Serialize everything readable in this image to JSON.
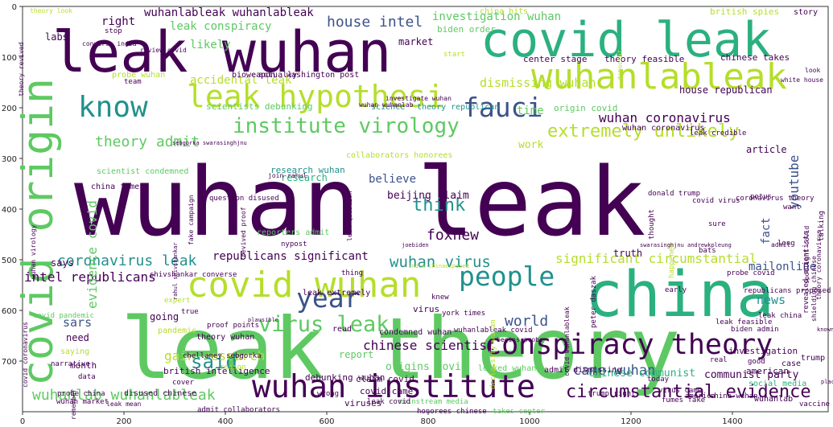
{
  "axes": {
    "x_ticks": [
      "0",
      "200",
      "400",
      "600",
      "800",
      "1000",
      "1200",
      "1400"
    ],
    "y_ticks": [
      "0",
      "100",
      "200",
      "300",
      "400",
      "500",
      "600",
      "700"
    ]
  },
  "colors": {
    "dark_purple": "#440154",
    "blue": "#3b528b",
    "teal": "#21918c",
    "green": "#2bb07f",
    "bright_green": "#5ec962",
    "lime": "#b5de2b",
    "yellow": "#fde725"
  },
  "words": [
    {
      "text": "wuhan leak",
      "color": "#440154"
    },
    {
      "text": "leak theory",
      "color": "#5ec962"
    },
    {
      "text": "china",
      "color": "#2bb07f"
    },
    {
      "text": "leak wuhan",
      "color": "#440154"
    },
    {
      "text": "covid leak",
      "color": "#2bb07f"
    },
    {
      "text": "covid wuhan",
      "color": "#b5de2b"
    },
    {
      "text": "covid origin",
      "color": "#5ec962"
    },
    {
      "text": "wuhanlableak",
      "color": "#b5de2b"
    },
    {
      "text": "leak hypothesi",
      "color": "#b5de2b"
    },
    {
      "text": "conspiracy theory",
      "color": "#440154"
    },
    {
      "text": "wuhan institute",
      "color": "#440154"
    },
    {
      "text": "institute virology",
      "color": "#5ec962"
    },
    {
      "text": "know",
      "color": "#21918c"
    },
    {
      "text": "fauci",
      "color": "#3b528b"
    },
    {
      "text": "people",
      "color": "#21918c"
    },
    {
      "text": "year",
      "color": "#3b528b"
    },
    {
      "text": "virus leak",
      "color": "#5ec962"
    },
    {
      "text": "circumstantial evidence",
      "color": "#440154"
    },
    {
      "text": "extremely unlikely",
      "color": "#b5de2b"
    },
    {
      "text": "wuhan coronavirus",
      "color": "#440154"
    },
    {
      "text": "theory admit",
      "color": "#5ec962"
    },
    {
      "text": "coronavirus leak",
      "color": "#21918c"
    },
    {
      "text": "wuhan virus",
      "color": "#21918c"
    },
    {
      "text": "significant circumstantial",
      "color": "#b5de2b"
    },
    {
      "text": "intel republicans",
      "color": "#440154"
    },
    {
      "text": "foxnew",
      "color": "#440154"
    },
    {
      "text": "think",
      "color": "#21918c"
    },
    {
      "text": "said",
      "color": "#21918c"
    },
    {
      "text": "chinese scientist",
      "color": "#440154"
    },
    {
      "text": "gain research",
      "color": "#b5de2b"
    },
    {
      "text": "came wuhan",
      "color": "#3b528b"
    },
    {
      "text": "wuhanlab wuhanlableak",
      "color": "#5ec962"
    },
    {
      "text": "accidental leak",
      "color": "#b5de2b"
    },
    {
      "text": "house intel",
      "color": "#3b528b"
    },
    {
      "text": "wuhanlableak wuhanlableak",
      "color": "#440154"
    },
    {
      "text": "leak conspiracy",
      "color": "#5ec962"
    },
    {
      "text": "investigation wuhan",
      "color": "#5ec962"
    },
    {
      "text": "dismissing wuhan",
      "color": "#b5de2b"
    },
    {
      "text": "believe",
      "color": "#3b528b"
    },
    {
      "text": "world",
      "color": "#3b528b"
    },
    {
      "text": "youtube",
      "color": "#3b528b"
    },
    {
      "text": "news",
      "color": "#21918c"
    },
    {
      "text": "evidence covid",
      "color": "#5ec962"
    },
    {
      "text": "sars",
      "color": "#3b528b"
    },
    {
      "text": "republicans significant",
      "color": "#440154"
    },
    {
      "text": "mailonline",
      "color": "#3b528b"
    },
    {
      "text": "origins covid",
      "color": "#5ec962"
    },
    {
      "text": "chinese communist",
      "color": "#2bb07f"
    },
    {
      "text": "communist party",
      "color": "#440154"
    },
    {
      "text": "right",
      "color": "#440154"
    },
    {
      "text": "probe wuhan",
      "color": "#b5de2b"
    },
    {
      "text": "theory look",
      "color": "#b5de2b"
    },
    {
      "text": "labs",
      "color": "#440154"
    },
    {
      "text": "likely",
      "color": "#5ec962"
    },
    {
      "text": "market",
      "color": "#440154"
    },
    {
      "text": "biden order",
      "color": "#5ec962"
    },
    {
      "text": "china hits",
      "color": "#b5de2b"
    },
    {
      "text": "british spies",
      "color": "#b5de2b"
    },
    {
      "text": "story",
      "color": "#440154"
    },
    {
      "text": "fact",
      "color": "#3b528b"
    },
    {
      "text": "article",
      "color": "#440154"
    },
    {
      "text": "wuhan coronavirus",
      "color": "#440154"
    },
    {
      "text": "theory feasible",
      "color": "#440154"
    },
    {
      "text": "center stage",
      "color": "#440154"
    },
    {
      "text": "chinese takes",
      "color": "#440154"
    },
    {
      "text": "house republican",
      "color": "#440154"
    },
    {
      "text": "origin covid",
      "color": "#5ec962"
    },
    {
      "text": "science",
      "color": "#21918c"
    },
    {
      "text": "theory republican",
      "color": "#21918c"
    },
    {
      "text": "scientists debunking",
      "color": "#5ec962"
    },
    {
      "text": "washington post",
      "color": "#440154"
    },
    {
      "text": "bioweapon",
      "color": "#440154"
    },
    {
      "text": "actually",
      "color": "#440154"
    },
    {
      "text": "time",
      "color": "#5ec962"
    },
    {
      "text": "research wuhan",
      "color": "#21918c"
    },
    {
      "text": "collaborators honorees",
      "color": "#b5de2b"
    },
    {
      "text": "beijing claim",
      "color": "#440154"
    },
    {
      "text": "work",
      "color": "#b5de2b"
    },
    {
      "text": "research",
      "color": "#2bb07f"
    },
    {
      "text": "truth",
      "color": "#440154"
    },
    {
      "text": "says",
      "color": "#440154"
    },
    {
      "text": "scientist condemned",
      "color": "#5ec962"
    },
    {
      "text": "china fumes",
      "color": "#440154"
    },
    {
      "text": "reporters admit",
      "color": "#5ec962"
    },
    {
      "text": "nypost",
      "color": "#440154"
    },
    {
      "text": "going",
      "color": "#440154"
    },
    {
      "text": "need",
      "color": "#440154"
    },
    {
      "text": "read",
      "color": "#440154"
    },
    {
      "text": "condemned wuhan",
      "color": "#440154"
    },
    {
      "text": "wuhanlableak covid",
      "color": "#440154"
    },
    {
      "text": "virus",
      "color": "#440154"
    },
    {
      "text": "york times",
      "color": "#440154"
    },
    {
      "text": "leak extremely",
      "color": "#440154"
    },
    {
      "text": "knew",
      "color": "#440154"
    },
    {
      "text": "proof points",
      "color": "#440154"
    },
    {
      "text": "pandemic",
      "color": "#b5de2b"
    },
    {
      "text": "theory wuhan",
      "color": "#440154"
    },
    {
      "text": "report",
      "color": "#5ec962"
    },
    {
      "text": "british intelligence",
      "color": "#440154"
    },
    {
      "text": "month",
      "color": "#440154"
    },
    {
      "text": "claim covid",
      "color": "#440154"
    },
    {
      "text": "covid came",
      "color": "#440154"
    },
    {
      "text": "debunking wuhan",
      "color": "#440154"
    },
    {
      "text": "viruses",
      "color": "#440154"
    },
    {
      "text": "leaked wuhan",
      "color": "#5ec962"
    },
    {
      "text": "admit dismissing",
      "color": "#440154"
    },
    {
      "text": "investigation",
      "color": "#440154"
    },
    {
      "text": "american",
      "color": "#440154"
    },
    {
      "text": "trump",
      "color": "#440154"
    },
    {
      "text": "case",
      "color": "#440154"
    },
    {
      "text": "social media",
      "color": "#2bb07f"
    },
    {
      "text": "probe china",
      "color": "#440154"
    },
    {
      "text": "wuhan market",
      "color": "#440154"
    },
    {
      "text": "disused chinese",
      "color": "#440154"
    },
    {
      "text": "mainstream media",
      "color": "#5ec962"
    },
    {
      "text": "trump right",
      "color": "#440154"
    },
    {
      "text": "america",
      "color": "#440154"
    },
    {
      "text": "china wuhan",
      "color": "#440154"
    },
    {
      "text": "wuhanlab",
      "color": "#440154"
    },
    {
      "text": "vaccine",
      "color": "#440154"
    },
    {
      "text": "virus came",
      "color": "#440154"
    },
    {
      "text": "fumes fake",
      "color": "#440154"
    },
    {
      "text": "admit collaborators",
      "color": "#440154"
    },
    {
      "text": "honorees chinese",
      "color": "#440154"
    },
    {
      "text": "takes center",
      "color": "#5ec962"
    },
    {
      "text": "covid pandemic",
      "color": "#5ec962"
    },
    {
      "text": "saying",
      "color": "#b5de2b"
    },
    {
      "text": "narrative",
      "color": "#440154"
    },
    {
      "text": "data",
      "color": "#440154"
    },
    {
      "text": "cover",
      "color": "#440154"
    },
    {
      "text": "wrong",
      "color": "#440154"
    },
    {
      "text": "leak covid",
      "color": "#440154"
    },
    {
      "text": "today",
      "color": "#440154"
    },
    {
      "text": "good",
      "color": "#440154"
    },
    {
      "text": "real",
      "color": "#440154"
    },
    {
      "text": "leak feasible",
      "color": "#440154"
    },
    {
      "text": "leak china",
      "color": "#440154"
    },
    {
      "text": "biden admin",
      "color": "#440154"
    },
    {
      "text": "republicans proposed",
      "color": "#440154"
    },
    {
      "text": "revealed scientists",
      "color": "#440154"
    },
    {
      "text": "probe covid",
      "color": "#440154"
    },
    {
      "text": "donald trump",
      "color": "#440154"
    },
    {
      "text": "thought",
      "color": "#440154"
    },
    {
      "text": "happened",
      "color": "#b5de2b"
    },
    {
      "text": "coronavirus theory",
      "color": "#440154"
    },
    {
      "text": "covid virus",
      "color": "#440154"
    },
    {
      "text": "leak credible",
      "color": "#440154"
    },
    {
      "text": "potus",
      "color": "#440154"
    },
    {
      "text": "want",
      "color": "#440154"
    },
    {
      "text": "sure",
      "color": "#440154"
    },
    {
      "text": "long",
      "color": "#440154"
    },
    {
      "text": "bats",
      "color": "#440154"
    },
    {
      "text": "talking",
      "color": "#440154"
    },
    {
      "text": "expert",
      "color": "#b5de2b"
    },
    {
      "text": "true",
      "color": "#440154"
    },
    {
      "text": "question disused",
      "color": "#440154"
    },
    {
      "text": "join rahul",
      "color": "#440154"
    },
    {
      "text": "leak question",
      "color": "#440154"
    },
    {
      "text": "fake campaign",
      "color": "#440154"
    },
    {
      "text": "revived proof",
      "color": "#440154"
    },
    {
      "text": "thing",
      "color": "#440154"
    },
    {
      "text": "early",
      "color": "#440154"
    },
    {
      "text": "wuhan virology",
      "color": "#440154"
    },
    {
      "text": "chellaney sebgorka",
      "color": "#440154"
    },
    {
      "text": "shivshankar converse",
      "color": "#440154"
    },
    {
      "text": "peter daszak",
      "color": "#440154"
    },
    {
      "text": "declassify wuhan",
      "color": "#b5de2b"
    },
    {
      "text": "begins probe",
      "color": "#440154"
    },
    {
      "text": "covid wuhanlableak",
      "color": "#440154"
    },
    {
      "text": "stop",
      "color": "#440154"
    },
    {
      "text": "converse india",
      "color": "#440154"
    },
    {
      "text": "review covid",
      "color": "#440154"
    },
    {
      "text": "start",
      "color": "#b5de2b"
    },
    {
      "text": "democrat",
      "color": "#b5de2b"
    },
    {
      "text": "white house",
      "color": "#440154"
    },
    {
      "text": "team",
      "color": "#440154"
    },
    {
      "text": "look",
      "color": "#440154"
    },
    {
      "text": "theory revived",
      "color": "#440154"
    },
    {
      "text": "wuhan wuhanlab",
      "color": "#440154"
    },
    {
      "text": "investigate wuhan",
      "color": "#440154"
    },
    {
      "text": "admit",
      "color": "#440154"
    },
    {
      "text": "shielding chinese",
      "color": "#440154"
    },
    {
      "text": "spotlight covid",
      "color": "#440154"
    },
    {
      "text": "theory coronavirus",
      "color": "#440154"
    },
    {
      "text": "covid coronavirus",
      "color": "#440154"
    },
    {
      "text": "remember",
      "color": "#440154"
    },
    {
      "text": "plausible",
      "color": "#440154"
    },
    {
      "text": "place",
      "color": "#440154"
    },
    {
      "text": "known",
      "color": "#440154"
    },
    {
      "text": "reason",
      "color": "#b5de2b"
    },
    {
      "text": "leak mean",
      "color": "#440154"
    },
    {
      "text": "sebgorka swarasinghjnu",
      "color": "#440154"
    },
    {
      "text": "swarasinghjnu andrewkpleung",
      "color": "#440154"
    },
    {
      "text": "joebiden",
      "color": "#440154"
    },
    {
      "text": "india chinaexposed",
      "color": "#b5de2b"
    },
    {
      "text": "rahul shivshankar",
      "color": "#440154"
    }
  ]
}
